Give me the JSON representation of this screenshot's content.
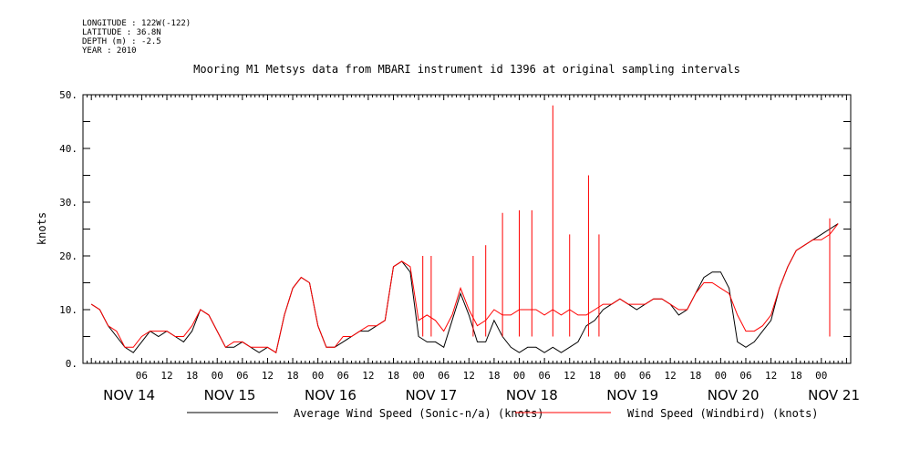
{
  "metadata": [
    "LONGITUDE : 122W(-122)",
    "LATITUDE : 36.8N",
    "DEPTH (m) : -2.5",
    "YEAR : 2010"
  ],
  "chart_data": {
    "type": "line",
    "title": "Mooring M1 Metsys data from MBARI instrument id 1396 at original sampling intervals",
    "ylabel": "knots",
    "xlabel": "",
    "ylim": [
      0,
      50
    ],
    "xlim_hours": [
      -8,
      175
    ],
    "y_ticks": [
      "0.",
      "10.",
      "20.",
      "30.",
      "40.",
      "50."
    ],
    "x_hour_ticks": [
      "06",
      "12",
      "18",
      "00",
      "06",
      "12",
      "18",
      "00",
      "06",
      "12",
      "18",
      "00",
      "06",
      "12",
      "18",
      "00",
      "06",
      "12",
      "18",
      "00",
      "06",
      "12",
      "18",
      "00",
      "06",
      "12",
      "18",
      "00"
    ],
    "x_day_labels": [
      "NOV 14",
      "NOV 15",
      "NOV 16",
      "NOV 17",
      "NOV 18",
      "NOV 19",
      "NOV 20",
      "NOV 21"
    ],
    "legend_placement": "bottom",
    "series": [
      {
        "name": "Average Wind Speed (Sonic-n/a) (knots)",
        "color": "#000000",
        "x_hours": [
          -6,
          -4,
          -2,
          0,
          2,
          4,
          6,
          8,
          10,
          12,
          14,
          16,
          18,
          20,
          22,
          24,
          26,
          28,
          30,
          32,
          34,
          36,
          38,
          40,
          42,
          44,
          46,
          48,
          50,
          52,
          54,
          56,
          58,
          60,
          62,
          64,
          66,
          68,
          70,
          72,
          74,
          76,
          78,
          80,
          82,
          84,
          86,
          88,
          90,
          92,
          94,
          96,
          98,
          100,
          102,
          104,
          106,
          108,
          110,
          112,
          114,
          116,
          118,
          120,
          122,
          124,
          126,
          128,
          130,
          132,
          134,
          136,
          138,
          140,
          142,
          144,
          146,
          148,
          150,
          152,
          154,
          156,
          158,
          160,
          162,
          164,
          166,
          168,
          170,
          172
        ],
        "values": [
          11,
          10,
          7,
          5,
          3,
          2,
          4,
          6,
          5,
          6,
          5,
          4,
          6,
          10,
          9,
          6,
          3,
          3,
          4,
          3,
          2,
          3,
          2,
          9,
          14,
          16,
          15,
          7,
          3,
          3,
          4,
          5,
          6,
          6,
          7,
          8,
          18,
          19,
          17,
          5,
          4,
          4,
          3,
          8,
          13,
          9,
          4,
          4,
          8,
          5,
          3,
          2,
          3,
          3,
          2,
          3,
          2,
          3,
          4,
          7,
          8,
          10,
          11,
          12,
          11,
          10,
          11,
          12,
          12,
          11,
          9,
          10,
          13,
          16,
          17,
          17,
          14,
          4,
          3,
          4,
          6,
          8,
          14,
          18,
          21,
          22,
          23,
          24,
          25,
          26
        ]
      },
      {
        "name": "Wind Speed (Windbird) (knots)",
        "color": "#ff0000",
        "x_hours": [
          -6,
          -4,
          -2,
          0,
          2,
          4,
          6,
          8,
          10,
          12,
          14,
          16,
          18,
          20,
          22,
          24,
          26,
          28,
          30,
          32,
          34,
          36,
          38,
          40,
          42,
          44,
          46,
          48,
          50,
          52,
          54,
          56,
          58,
          60,
          62,
          64,
          66,
          68,
          70,
          72,
          74,
          76,
          78,
          80,
          82,
          84,
          86,
          88,
          90,
          92,
          94,
          96,
          98,
          100,
          102,
          104,
          106,
          108,
          110,
          112,
          114,
          116,
          118,
          120,
          122,
          124,
          126,
          128,
          130,
          132,
          134,
          136,
          138,
          140,
          142,
          144,
          146,
          148,
          150,
          152,
          154,
          156,
          158,
          160,
          162,
          164,
          166,
          168,
          170,
          172
        ],
        "values": [
          11,
          10,
          7,
          6,
          3,
          3,
          5,
          6,
          6,
          6,
          5,
          5,
          7,
          10,
          9,
          6,
          3,
          4,
          4,
          3,
          3,
          3,
          2,
          9,
          14,
          16,
          15,
          7,
          3,
          3,
          5,
          5,
          6,
          7,
          7,
          8,
          18,
          19,
          18,
          8,
          9,
          8,
          6,
          9,
          14,
          10,
          7,
          8,
          10,
          9,
          9,
          10,
          10,
          10,
          9,
          10,
          9,
          10,
          9,
          9,
          10,
          11,
          11,
          12,
          11,
          11,
          11,
          12,
          12,
          11,
          10,
          10,
          13,
          15,
          15,
          14,
          13,
          9,
          6,
          6,
          7,
          9,
          14,
          18,
          21,
          22,
          23,
          23,
          24,
          26
        ],
        "spikes": [
          {
            "x": 104,
            "value": 48
          },
          {
            "x": 112.5,
            "value": 35
          },
          {
            "x": 92,
            "value": 28
          },
          {
            "x": 96,
            "value": 28.5
          },
          {
            "x": 99,
            "value": 28.5
          },
          {
            "x": 108,
            "value": 24
          },
          {
            "x": 115,
            "value": 24
          },
          {
            "x": 85,
            "value": 20
          },
          {
            "x": 88,
            "value": 22
          },
          {
            "x": 73,
            "value": 20
          },
          {
            "x": 75,
            "value": 20
          },
          {
            "x": 170,
            "value": 27
          }
        ]
      }
    ]
  }
}
